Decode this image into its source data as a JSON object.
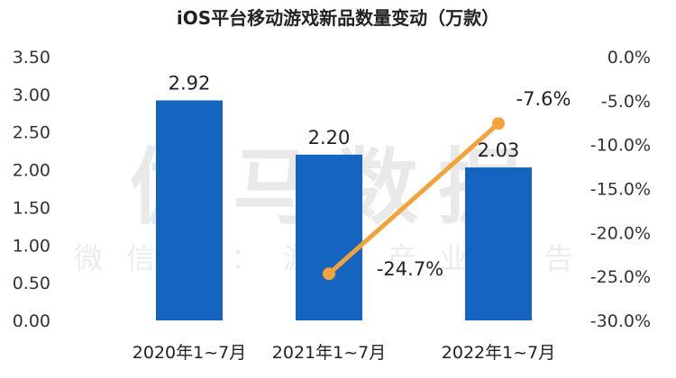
{
  "chart_data": {
    "type": "bar",
    "title": "iOS平台移动游戏新品数量变动（万款）",
    "categories": [
      "2020年1~7月",
      "2021年1~7月",
      "2022年1~7月"
    ],
    "series": [
      {
        "type": "bar",
        "values": [
          2.92,
          2.2,
          2.03
        ],
        "color": "#1565c0",
        "labels": [
          "2.92",
          "2.20",
          "2.03"
        ]
      },
      {
        "type": "line",
        "axis": "right",
        "values": [
          null,
          -24.7,
          -7.6
        ],
        "color": "#f2a33a",
        "labels": [
          "",
          "-24.7%",
          "-7.6%"
        ]
      }
    ],
    "y_left": {
      "min": 0,
      "max": 3.5,
      "step": 0.5,
      "ticks": [
        "0.00",
        "0.50",
        "1.00",
        "1.50",
        "2.00",
        "2.50",
        "3.00",
        "3.50"
      ]
    },
    "y_right": {
      "min": -30,
      "max": 0,
      "step": 5,
      "ticks": [
        "-30.0%",
        "-25.0%",
        "-20.0%",
        "-15.0%",
        "-10.0%",
        "-5.0%",
        "0.0%"
      ]
    },
    "grid": false,
    "legend": "none"
  },
  "watermark": {
    "main": "伽马数据",
    "sub": "微信号：游戏产业报告"
  }
}
